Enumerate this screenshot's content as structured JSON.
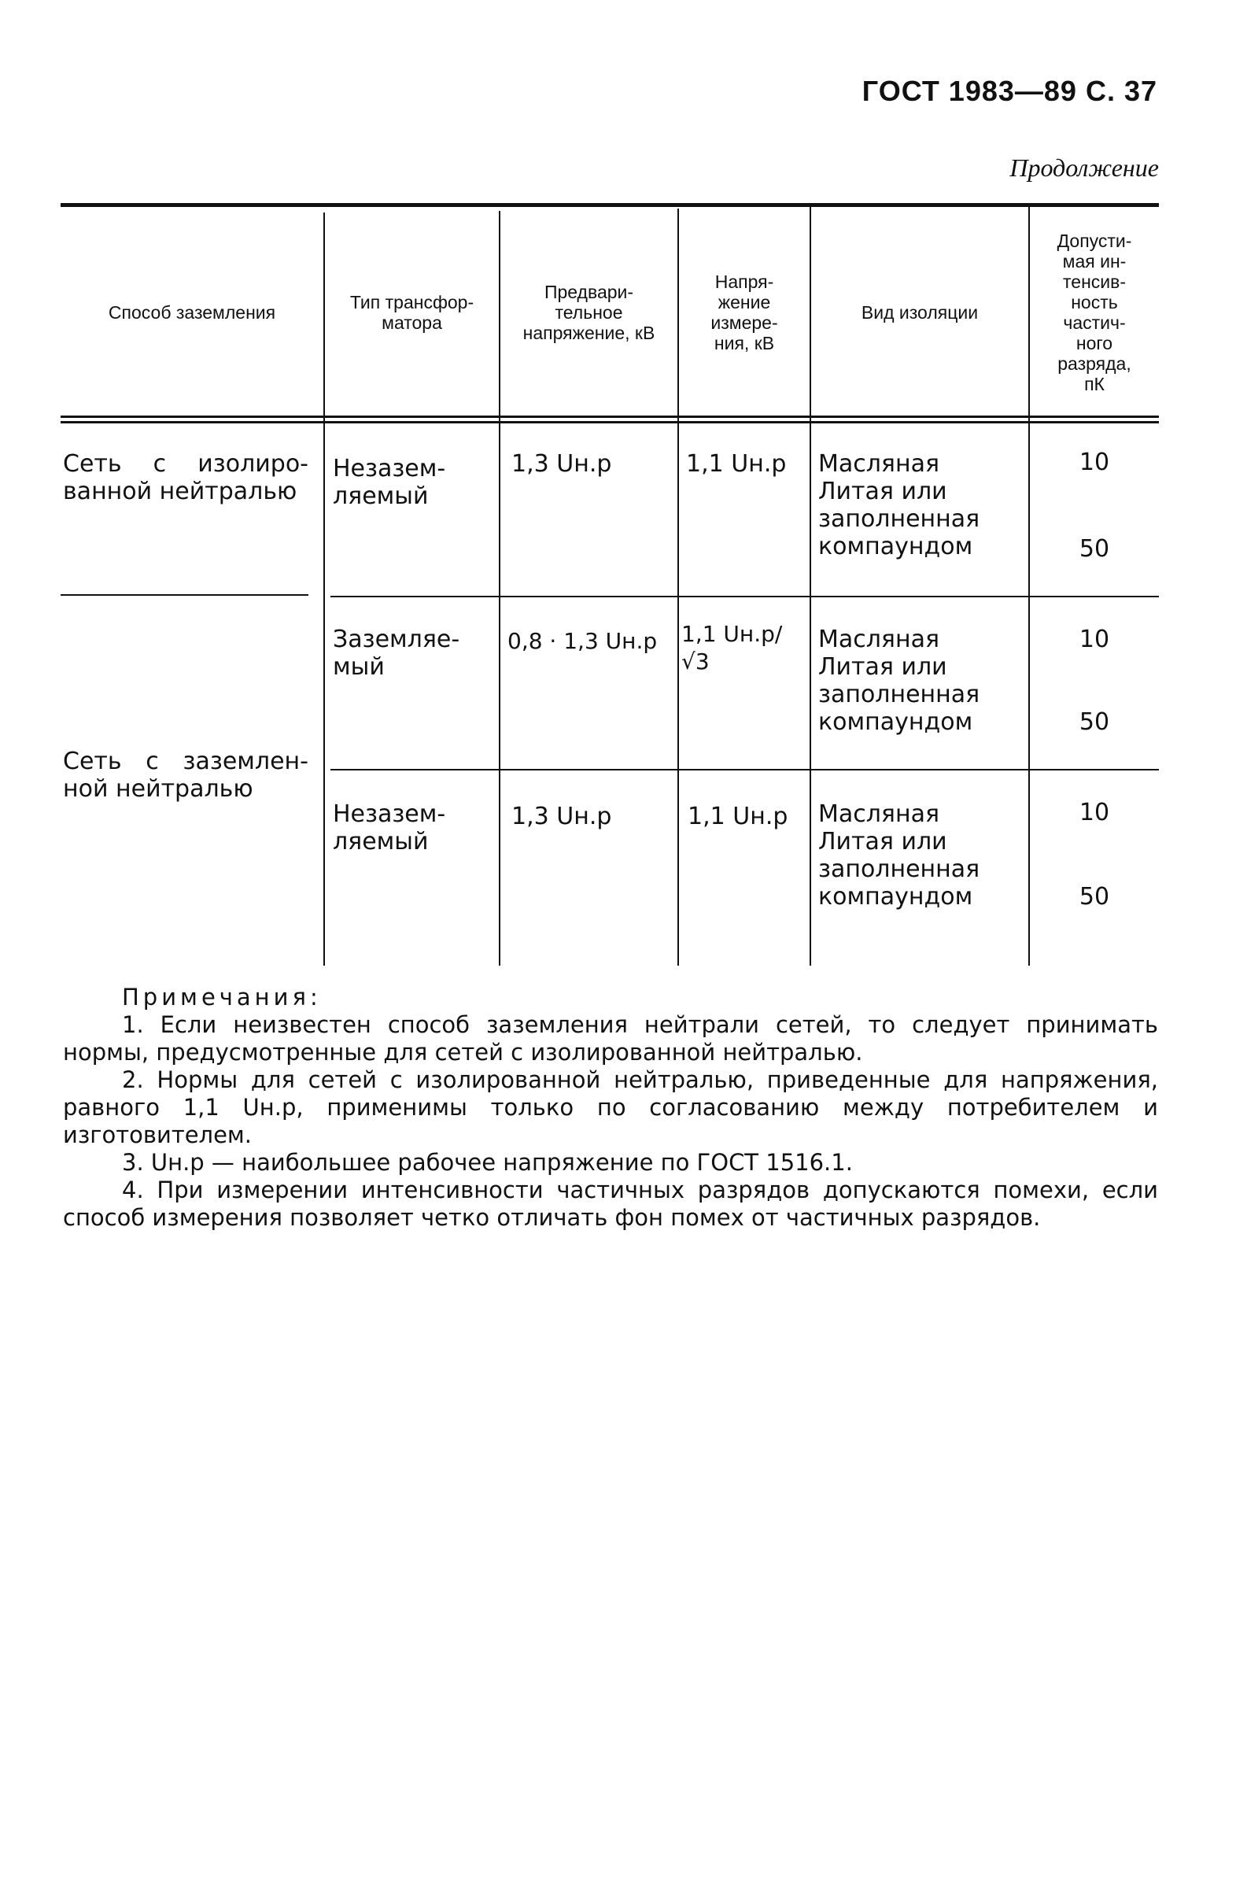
{
  "header": {
    "title": "ГОСТ 1983—89 С. 37",
    "continuation": "Продолжение"
  },
  "table": {
    "columns": [
      "Способ заземления",
      "Тип трансфор-матора",
      "Предвари-тельное напряжение, кВ",
      "Напря-жение измере-ния, кВ",
      "Вид изоляции",
      "Допусти-мая ин-тенсив-ность частич-ного разряда, пК"
    ],
    "groups": [
      {
        "method": "Сеть с изолиро-ванной нейтралью",
        "rows": [
          {
            "type": "Незазем-ляемый",
            "pre": "1,3 Uн.р",
            "meas": "1,1 Uн.р",
            "insulation": [
              "Масляная",
              "Литая или заполненная компаундом"
            ],
            "values": [
              "10",
              "50"
            ]
          }
        ]
      },
      {
        "method": "Сеть с заземлен-ной нейтралью",
        "rows": [
          {
            "type": "Заземляе-мый",
            "pre": "0,8 · 1,3 Uн.р",
            "meas": "1,1 Uн.р/√3",
            "insulation": [
              "Масляная",
              "Литая или заполненная компаундом"
            ],
            "values": [
              "10",
              "50"
            ]
          },
          {
            "type": "Незазем-ляемый",
            "pre": "1,3 Uн.р",
            "meas": "1,1 Uн.р",
            "insulation": [
              "Масляная",
              "Литая или заполненная компаундом"
            ],
            "values": [
              "10",
              "50"
            ]
          }
        ]
      }
    ]
  },
  "notes": {
    "title": "Примечания:",
    "items": [
      "1. Если неизвестен способ заземления нейтрали сетей, то следует принимать нормы, предусмотренные для сетей с изолированной нейтралью.",
      "2. Нормы для сетей с изолированной нейтралью, приведенные для напряжения, равного 1,1 Uн.р, применимы только по согласованию между потребителем и изготовителем.",
      "3. Uн.р — наибольшее рабочее напряжение по ГОСТ 1516.1.",
      "4. При измерении интенсивности частичных разрядов допускаются помехи, если способ измерения позволяет четко отличать фон помех от частичных разрядов."
    ]
  }
}
